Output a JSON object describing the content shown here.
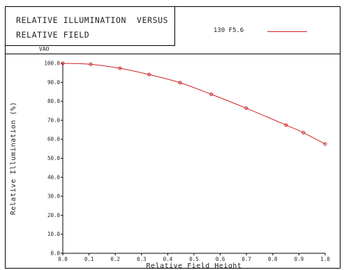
{
  "header": {
    "title_line1": "RELATIVE ILLUMINATION  VERSUS",
    "title_line2": "RELATIVE FIELD",
    "subtitle": "VAO"
  },
  "legend": {
    "entries": [
      {
        "label": "130 F5.6",
        "color": "#cc2222"
      }
    ]
  },
  "chart_data": {
    "type": "line",
    "title": "RELATIVE ILLUMINATION  VERSUS RELATIVE FIELD",
    "subtitle": "VAO",
    "xlabel": "Relative Field Height",
    "ylabel": "Relative Illumination (%)",
    "xlim": [
      0.0,
      1.0
    ],
    "ylim": [
      0.0,
      100.0
    ],
    "x_ticks": [
      "0.0",
      "0.1",
      "0.2",
      "0.3",
      "0.4",
      "0.5",
      "0.6",
      "0.7",
      "0.8",
      "0.9",
      "1.0"
    ],
    "y_ticks": [
      "0.0",
      "10.0",
      "20.0",
      "30.0",
      "40.0",
      "50.0",
      "60.0",
      "70.0",
      "80.0",
      "90.0",
      "100.0"
    ],
    "grid": false,
    "legend_position": "header-right",
    "series": [
      {
        "name": "130 F5.6",
        "color": "#cc2222",
        "marker": "circle",
        "x": [
          0.0,
          0.106,
          0.218,
          0.329,
          0.447,
          0.566,
          0.699,
          0.851,
          0.917,
          1.0
        ],
        "y": [
          100.0,
          99.5,
          97.4,
          94.1,
          89.8,
          83.7,
          76.4,
          67.5,
          63.5,
          57.5
        ]
      }
    ]
  }
}
